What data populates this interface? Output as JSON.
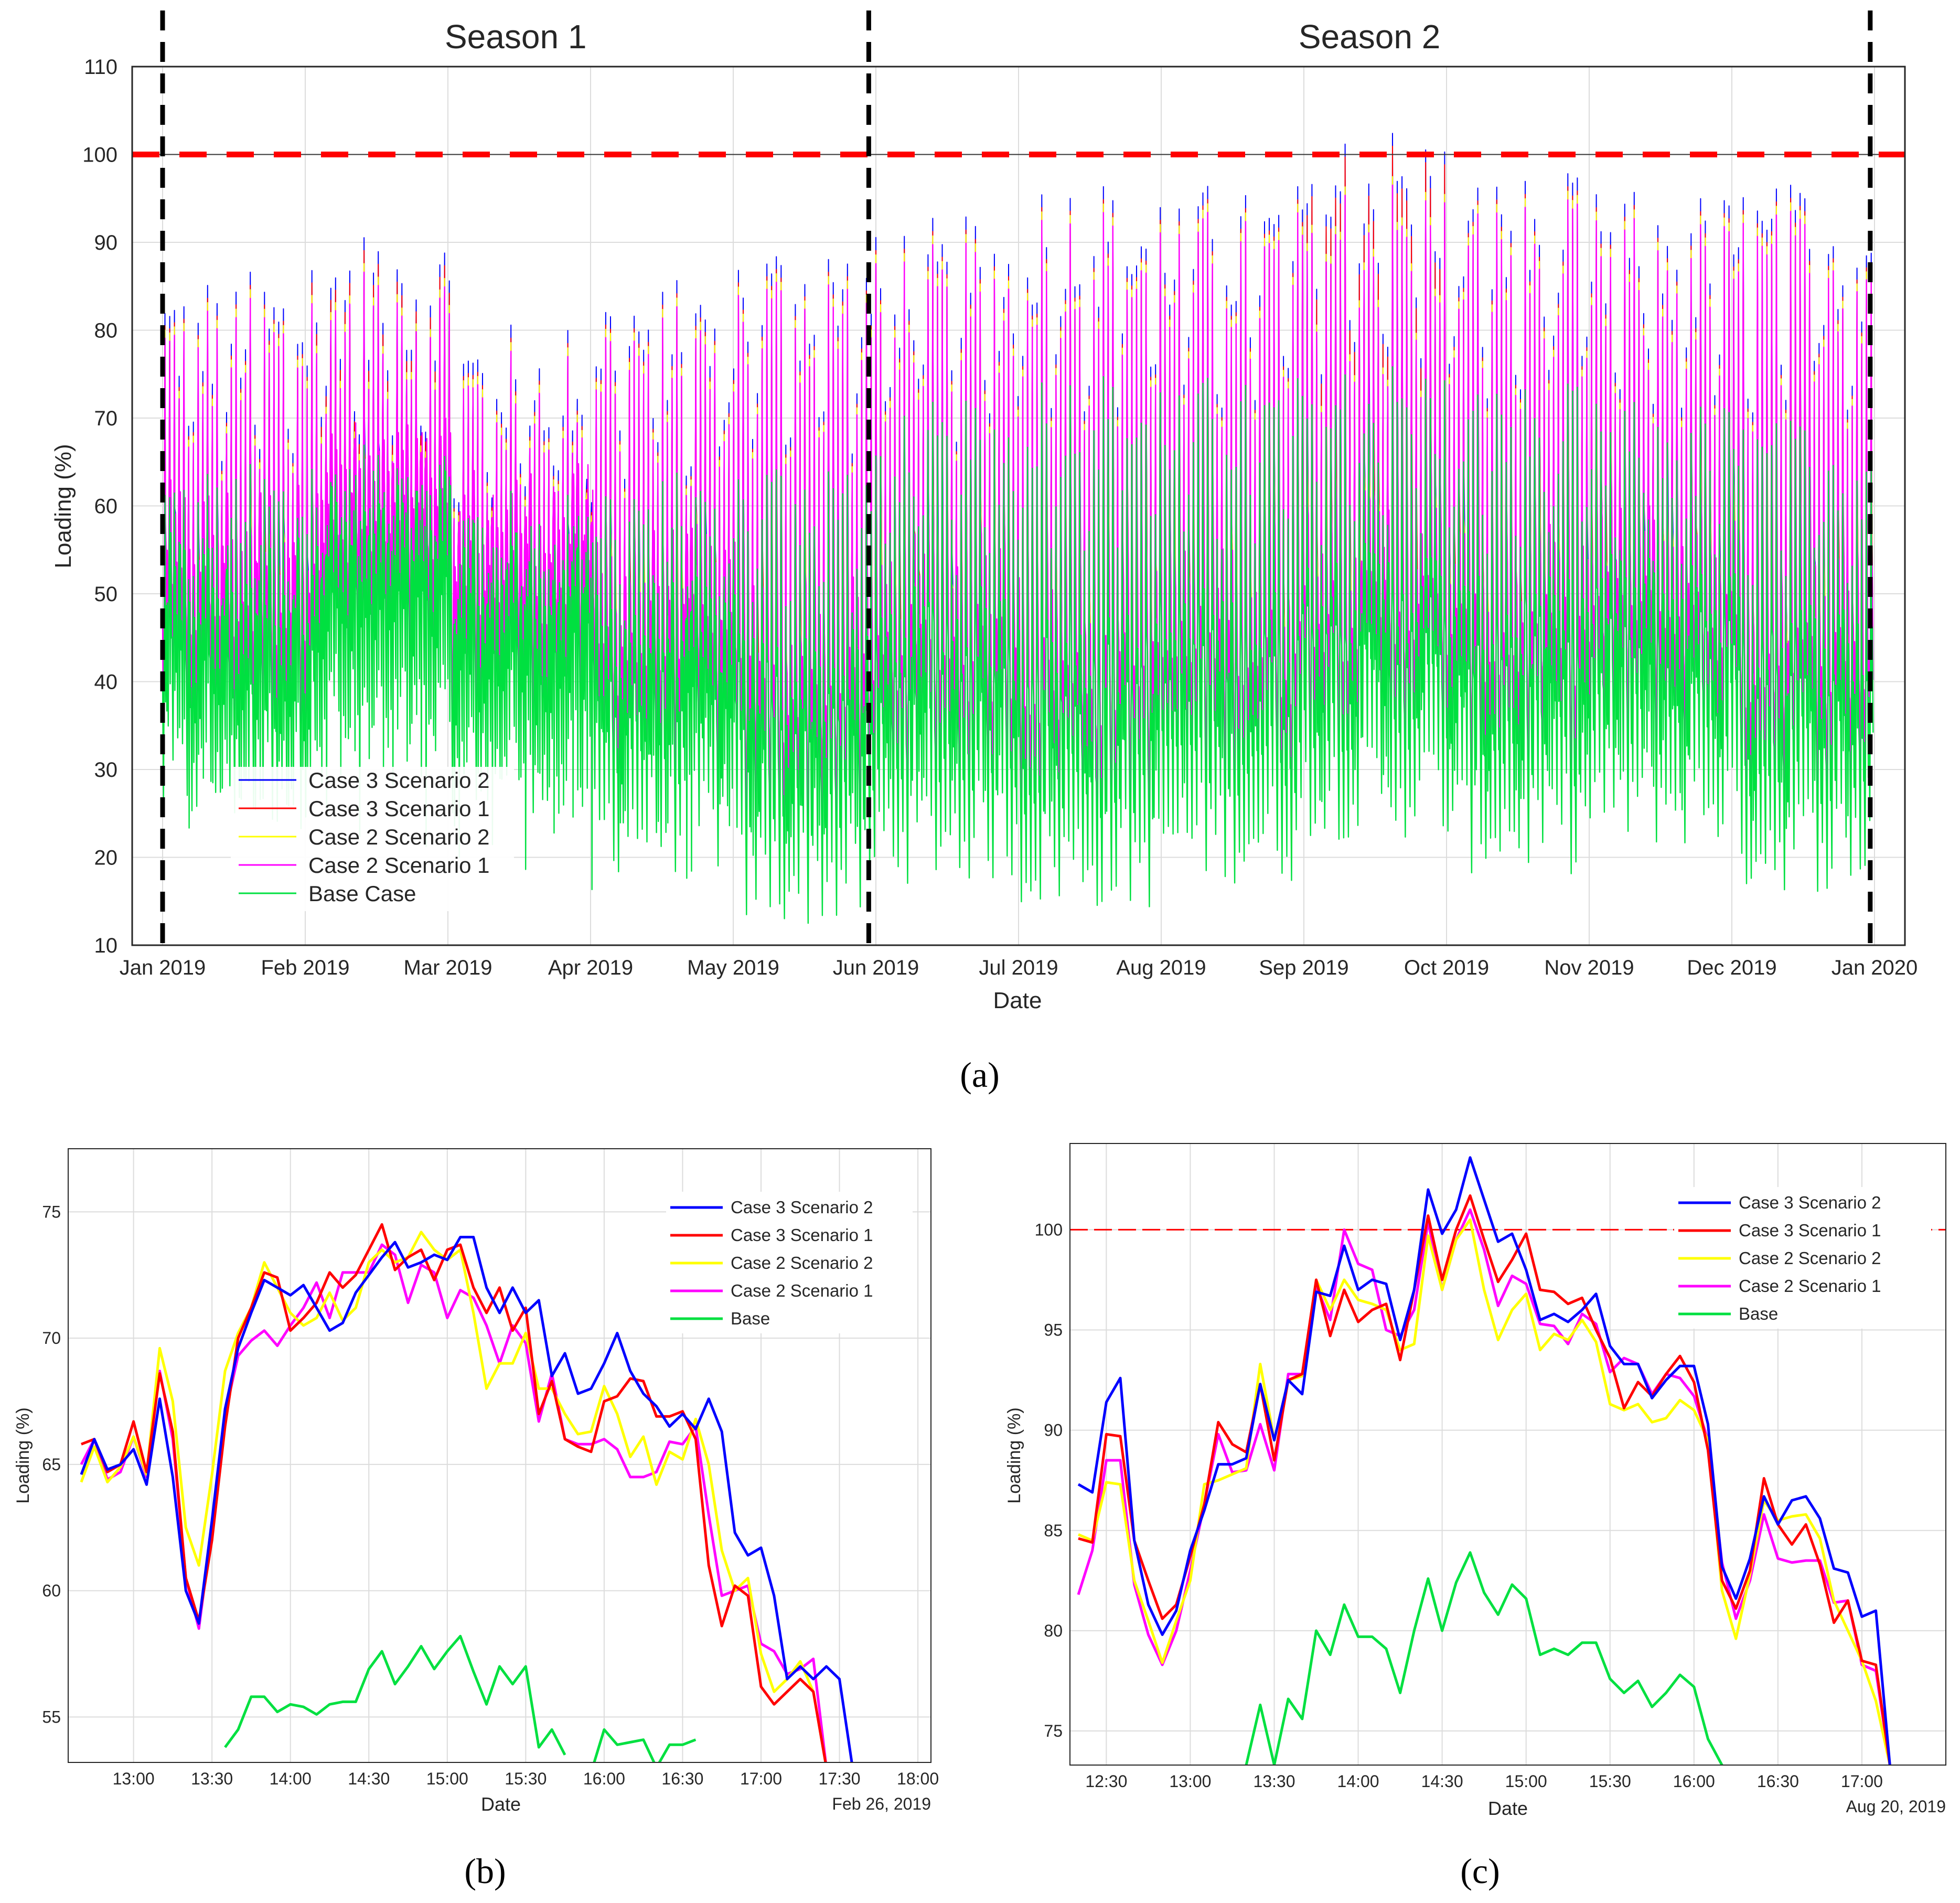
{
  "colors": {
    "case3_scen2": "#0000ff",
    "case3_scen1": "#ff0000",
    "case2_scen2": "#ffff00",
    "case2_scen1": "#ff00ff",
    "base": "#00e040",
    "grid": "#dcdcdc",
    "limit": "#ff0000",
    "season_line": "#000000"
  },
  "chart_data": [
    {
      "id": "a",
      "type": "line",
      "caption": "(a)",
      "xlabel": "Date",
      "ylabel": "Loading (%)",
      "ylim": [
        10,
        110
      ],
      "yticks": [
        "10",
        "20",
        "30",
        "40",
        "50",
        "60",
        "70",
        "80",
        "90",
        "100",
        "110"
      ],
      "highlight_tick": "100",
      "xticks": [
        "Jan 2019",
        "Feb 2019",
        "Mar 2019",
        "Apr 2019",
        "May 2019",
        "Jun 2019",
        "Jul 2019",
        "Aug 2019",
        "Sep 2019",
        "Oct 2019",
        "Nov 2019",
        "Dec 2019",
        "Jan 2020"
      ],
      "seasons": [
        {
          "label": "Season 1",
          "start_month": 0,
          "end_month": 4.95
        },
        {
          "label": "Season 2",
          "start_month": 4.95,
          "end_month": 11.97
        }
      ],
      "limit_line": 100,
      "legend_position": "bottom-left",
      "legend": [
        "Case 3 Scenario 2",
        "Case 3 Scenario 1",
        "Case 2 Scenario 2",
        "Case 2 Scenario 1",
        "Base Case"
      ],
      "daily_peak_envelope": {
        "note": "approximate monthly envelope of daily peaks (data units)",
        "months": [
          "Jan",
          "Feb",
          "Mar",
          "Apr",
          "May",
          "Jun",
          "Jul",
          "Aug",
          "Sep",
          "Oct",
          "Nov",
          "Dec"
        ],
        "case3_scen2_peak": [
          87,
          92,
          81,
          86,
          91,
          93,
          98,
          97,
          104,
          98,
          96,
          97
        ],
        "case2_scen1_peak": [
          84,
          88,
          78,
          83,
          88,
          90,
          95,
          94,
          98,
          95,
          93,
          94
        ],
        "base_peak": [
          65,
          68,
          62,
          64,
          66,
          72,
          76,
          75,
          77,
          74,
          72,
          70
        ],
        "base_min": [
          23,
          30,
          25,
          18,
          12,
          17,
          14,
          17,
          22,
          18,
          21,
          16
        ]
      }
    },
    {
      "id": "b",
      "type": "line",
      "caption": "(b)",
      "xlabel": "Date",
      "ylabel": "Loading (%)",
      "date_label": "Feb 26, 2019",
      "ylim": [
        53.2,
        77.5
      ],
      "yticks": [
        "55",
        "60",
        "65",
        "70",
        "75"
      ],
      "xticks": [
        "13:00",
        "13:30",
        "14:00",
        "14:30",
        "15:00",
        "15:30",
        "16:00",
        "16:30",
        "17:00",
        "17:30",
        "18:00"
      ],
      "x_start_minutes": 760,
      "x_step_minutes": 5,
      "legend_position": "top-right",
      "series": [
        {
          "name": "Case 3 Scenario 2",
          "key": "case3_scen2",
          "values": [
            64.6,
            66.0,
            64.8,
            65.0,
            65.6,
            64.2,
            67.6,
            64.5,
            60.0,
            58.7,
            62.8,
            67.2,
            69.6,
            71.0,
            72.3,
            72.0,
            71.7,
            72.1,
            71.2,
            70.3,
            70.6,
            71.8,
            72.5,
            73.2,
            73.8,
            72.8,
            73.0,
            73.3,
            73.1,
            74.0,
            74.0,
            72.0,
            71.0,
            72.0,
            71.0,
            71.5,
            68.5,
            69.4,
            67.8,
            68.0,
            69.0,
            70.2,
            68.7,
            67.8,
            67.3,
            66.5,
            67.0,
            66.4,
            67.6,
            66.3,
            62.3,
            61.4,
            61.7,
            59.8,
            56.5,
            57.0,
            56.5,
            57.0,
            56.5,
            53.0
          ]
        },
        {
          "name": "Case 3 Scenario 1",
          "key": "case3_scen1",
          "values": [
            65.8,
            66.0,
            64.7,
            65.0,
            66.7,
            64.7,
            68.6,
            66.3,
            60.5,
            58.8,
            62.0,
            66.5,
            70.0,
            71.2,
            72.6,
            72.4,
            70.3,
            70.8,
            71.4,
            72.6,
            72.0,
            72.5,
            73.5,
            74.5,
            72.7,
            73.2,
            73.5,
            72.3,
            73.5,
            73.7,
            72.0,
            71.0,
            72.0,
            70.3,
            71.2,
            67.0,
            68.3,
            66.0,
            65.7,
            65.5,
            67.5,
            67.7,
            68.4,
            68.3,
            66.9,
            66.9,
            67.1,
            66.0,
            61.0,
            58.6,
            60.2,
            59.8,
            56.2,
            55.5,
            56.0,
            56.5,
            56.0,
            53.0
          ]
        },
        {
          "name": "Case 2 Scenario 2",
          "key": "case2_scen2",
          "values": [
            64.3,
            65.7,
            64.3,
            64.9,
            66.1,
            64.6,
            69.6,
            67.5,
            62.5,
            61.0,
            64.6,
            68.7,
            70.2,
            71.2,
            73.0,
            72.0,
            71.0,
            70.5,
            70.8,
            71.8,
            70.7,
            71.2,
            73.0,
            73.5,
            73.0,
            73.2,
            74.2,
            73.5,
            73.1,
            73.5,
            71.0,
            68.0,
            69.0,
            69.0,
            70.2,
            68.0,
            68.0,
            67.0,
            66.2,
            66.3,
            68.1,
            67.0,
            65.3,
            66.1,
            64.2,
            65.5,
            65.2,
            66.8,
            65.0,
            61.6,
            60.0,
            60.5,
            57.5,
            56.0,
            56.5,
            57.2,
            56.0,
            53.0
          ]
        },
        {
          "name": "Case 2 Scenario 1",
          "key": "case2_scen1",
          "values": [
            65.0,
            66.0,
            64.4,
            64.7,
            66.1,
            64.5,
            68.7,
            66.0,
            60.5,
            58.5,
            62.5,
            67.0,
            69.3,
            69.9,
            70.3,
            69.7,
            70.5,
            71.2,
            72.2,
            70.8,
            72.6,
            72.6,
            72.6,
            73.7,
            73.3,
            71.4,
            72.9,
            72.6,
            70.8,
            71.9,
            71.6,
            70.5,
            69.0,
            70.5,
            69.8,
            66.7,
            68.6,
            66.0,
            65.8,
            65.8,
            66.0,
            65.6,
            64.5,
            64.5,
            64.7,
            65.9,
            65.8,
            66.5,
            63.0,
            59.8,
            60.0,
            60.2,
            57.9,
            57.6,
            56.7,
            56.9,
            57.3,
            53.0
          ]
        },
        {
          "name": "Base",
          "key": "base",
          "values": [
            null,
            null,
            null,
            null,
            null,
            null,
            null,
            null,
            null,
            null,
            null,
            53.8,
            54.5,
            55.8,
            55.8,
            55.2,
            55.5,
            55.4,
            55.1,
            55.5,
            55.6,
            55.6,
            56.9,
            57.6,
            56.3,
            57.0,
            57.8,
            56.9,
            57.6,
            58.2,
            56.8,
            55.5,
            57.0,
            56.3,
            57.0,
            53.8,
            54.5,
            53.5,
            null,
            52.8,
            54.5,
            53.9,
            54.0,
            54.1,
            53.0,
            53.9,
            53.9,
            54.1,
            null
          ]
        }
      ]
    },
    {
      "id": "c",
      "type": "line",
      "caption": "(c)",
      "xlabel": "Date",
      "ylabel": "Loading (%)",
      "date_label": "Aug 20, 2019",
      "ylim": [
        73.3,
        104.3
      ],
      "yticks": [
        "75",
        "80",
        "85",
        "90",
        "95",
        "100"
      ],
      "xticks": [
        "12:30",
        "13:00",
        "13:30",
        "14:00",
        "14:30",
        "15:00",
        "15:30",
        "16:00",
        "16:30",
        "17:00"
      ],
      "x_start_minutes": 740,
      "x_step_minutes": 5,
      "limit_line": 100,
      "legend_position": "top-right",
      "series": [
        {
          "name": "Case 3 Scenario 2",
          "key": "case3_scen2",
          "values": [
            87.3,
            86.9,
            91.4,
            92.6,
            84.5,
            81.3,
            79.8,
            81.0,
            84.0,
            86.0,
            88.3,
            88.3,
            88.6,
            92.3,
            89.5,
            92.5,
            91.8,
            96.9,
            96.7,
            99.2,
            97.0,
            97.5,
            97.3,
            94.5,
            97.0,
            102.0,
            99.8,
            101.0,
            103.6,
            101.5,
            99.4,
            99.8,
            98.0,
            95.5,
            95.8,
            95.4,
            96.0,
            96.8,
            94.2,
            93.3,
            93.3,
            91.6,
            92.5,
            93.2,
            93.2,
            90.3,
            83.2,
            81.6,
            83.6,
            86.7,
            85.3,
            86.5,
            86.7,
            85.6,
            83.1,
            82.9,
            80.7,
            81.0,
            73.3
          ]
        },
        {
          "name": "Case 3 Scenario 1",
          "key": "case3_scen1",
          "values": [
            84.6,
            84.4,
            89.8,
            89.7,
            84.5,
            82.5,
            80.6,
            81.3,
            83.7,
            86.3,
            90.4,
            89.3,
            88.9,
            92.3,
            88.5,
            92.5,
            92.8,
            97.5,
            94.7,
            97.0,
            95.4,
            96.0,
            96.3,
            93.5,
            97.0,
            100.7,
            97.5,
            100.0,
            101.7,
            99.5,
            97.4,
            98.5,
            99.8,
            97.0,
            96.9,
            96.3,
            96.6,
            95.0,
            93.6,
            91.1,
            92.4,
            91.7,
            92.8,
            93.7,
            92.4,
            89.0,
            82.5,
            81.1,
            83.0,
            87.6,
            85.3,
            84.3,
            85.3,
            83.3,
            80.4,
            81.5,
            78.5,
            78.3,
            73.3
          ]
        },
        {
          "name": "Case 2 Scenario 2",
          "key": "case2_scen2",
          "values": [
            84.8,
            84.5,
            87.4,
            87.3,
            82.5,
            80.5,
            78.4,
            80.5,
            82.5,
            87.3,
            87.5,
            87.8,
            88.1,
            93.3,
            89.5,
            92.5,
            92.7,
            97.5,
            96.0,
            97.5,
            96.5,
            96.3,
            96.0,
            94.0,
            94.3,
            99.7,
            97.0,
            99.5,
            100.5,
            97.0,
            94.5,
            96.0,
            96.8,
            94.0,
            94.8,
            94.5,
            95.5,
            94.4,
            91.3,
            91.0,
            91.3,
            90.4,
            90.6,
            91.5,
            91.0,
            89.5,
            82.0,
            79.6,
            82.8,
            86.5,
            85.5,
            85.7,
            85.8,
            84.6,
            81.5,
            80.0,
            78.5,
            76.5,
            73.3
          ]
        },
        {
          "name": "Case 2 Scenario 1",
          "key": "case2_scen1",
          "values": [
            81.8,
            84.0,
            88.5,
            88.5,
            82.3,
            79.8,
            78.3,
            80.0,
            83.0,
            86.3,
            89.8,
            87.9,
            88.0,
            90.3,
            88.0,
            92.8,
            92.8,
            97.2,
            95.5,
            100.0,
            98.3,
            98.0,
            95.0,
            94.7,
            96.0,
            100.4,
            97.0,
            99.5,
            101.0,
            99.0,
            96.2,
            97.7,
            97.3,
            95.3,
            95.2,
            94.3,
            95.8,
            95.3,
            92.9,
            93.6,
            93.3,
            91.8,
            92.8,
            92.6,
            91.7,
            89.5,
            83.4,
            80.6,
            82.5,
            85.8,
            83.6,
            83.4,
            83.5,
            83.5,
            81.4,
            81.5,
            78.3,
            78.0,
            73.3
          ]
        },
        {
          "name": "Base",
          "key": "base",
          "values": [
            null,
            null,
            null,
            null,
            null,
            null,
            null,
            null,
            null,
            null,
            null,
            null,
            73.3,
            76.3,
            73.3,
            76.6,
            75.6,
            80.0,
            78.8,
            81.3,
            79.7,
            79.7,
            79.1,
            76.9,
            80.0,
            82.6,
            80.0,
            82.4,
            83.9,
            81.9,
            80.8,
            82.3,
            81.6,
            78.8,
            79.1,
            78.8,
            79.4,
            79.4,
            77.6,
            76.9,
            77.5,
            76.2,
            76.9,
            77.8,
            77.2,
            74.6,
            73.3
          ]
        }
      ]
    }
  ]
}
